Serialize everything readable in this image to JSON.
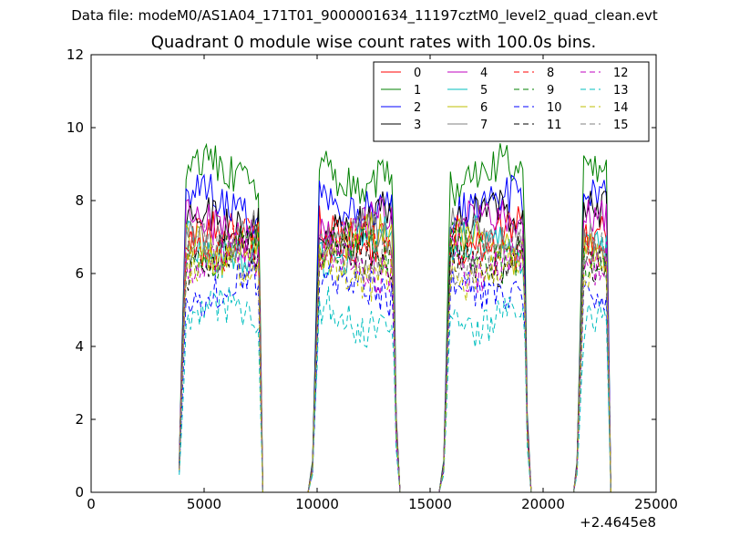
{
  "figure": {
    "suptitle": "Data file: modeM0/AS1A04_171T01_9000001634_11197cztM0_level2_quad_clean.evt"
  },
  "chart_data": {
    "type": "line",
    "title": "Quadrant 0 module wise count rates with 100.0s bins.",
    "xlabel": "",
    "ylabel": "",
    "xlim": [
      0,
      25000
    ],
    "ylim": [
      0,
      12
    ],
    "x_offset_label": "+2.4645e8",
    "x_ticks": [
      0,
      5000,
      10000,
      15000,
      20000,
      25000
    ],
    "x_tick_labels": [
      "0",
      "5000",
      "10000",
      "15000",
      "20000",
      "25000"
    ],
    "y_ticks": [
      0,
      2,
      4,
      6,
      8,
      10,
      12
    ],
    "y_tick_labels": [
      "0",
      "2",
      "4",
      "6",
      "8",
      "10",
      "12"
    ],
    "grid": false,
    "legend_position": "top-right",
    "legend_columns": 4,
    "bin_seconds": 100,
    "segments": [
      {
        "start": 3900,
        "end": 7600,
        "zero_to": 9600
      },
      {
        "start": 9800,
        "end": 13550,
        "zero_to": 15400
      },
      {
        "start": 15600,
        "end": 19350,
        "zero_to": 21350
      },
      {
        "start": 21500,
        "end": 23000,
        "zero_to": 23000
      }
    ],
    "series": [
      {
        "name": "0",
        "color": "#ff0000",
        "style": "solid",
        "level": 7.0
      },
      {
        "name": "1",
        "color": "#008000",
        "style": "solid",
        "level": 8.7
      },
      {
        "name": "2",
        "color": "#0000ff",
        "style": "solid",
        "level": 7.9
      },
      {
        "name": "3",
        "color": "#000000",
        "style": "solid",
        "level": 7.5
      },
      {
        "name": "4",
        "color": "#bf00bf",
        "style": "solid",
        "level": 7.3
      },
      {
        "name": "5",
        "color": "#00bfbf",
        "style": "solid",
        "level": 6.7
      },
      {
        "name": "6",
        "color": "#bfbf00",
        "style": "solid",
        "level": 6.8
      },
      {
        "name": "7",
        "color": "#808080",
        "style": "solid",
        "level": 7.0
      },
      {
        "name": "8",
        "color": "#ff0000",
        "style": "dashed",
        "level": 6.8
      },
      {
        "name": "9",
        "color": "#008000",
        "style": "dashed",
        "level": 6.6
      },
      {
        "name": "10",
        "color": "#0000ff",
        "style": "dashed",
        "level": 5.6
      },
      {
        "name": "11",
        "color": "#000000",
        "style": "dashed",
        "level": 6.4
      },
      {
        "name": "12",
        "color": "#bf00bf",
        "style": "dashed",
        "level": 6.3
      },
      {
        "name": "13",
        "color": "#00bfbf",
        "style": "dashed",
        "level": 4.8
      },
      {
        "name": "14",
        "color": "#bfbf00",
        "style": "dashed",
        "level": 6.1
      },
      {
        "name": "15",
        "color": "#808080",
        "style": "dashed",
        "level": 6.5
      }
    ]
  }
}
